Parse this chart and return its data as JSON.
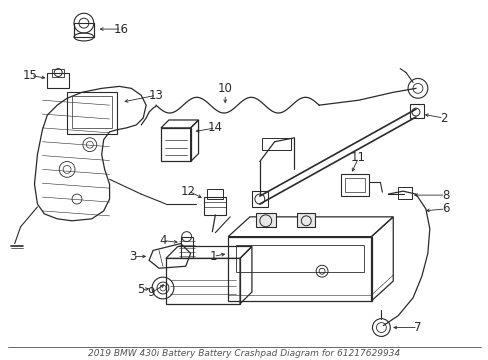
{
  "title": "2019 BMW 430i Battery Battery Crashpad Diagram for 61217629934",
  "bg_color": "#ffffff",
  "line_color": "#2a2a2a",
  "label_color": "#000000",
  "label_fontsize": 8.5,
  "title_fontsize": 6.5,
  "fig_width": 4.89,
  "fig_height": 3.6,
  "dpi": 100
}
